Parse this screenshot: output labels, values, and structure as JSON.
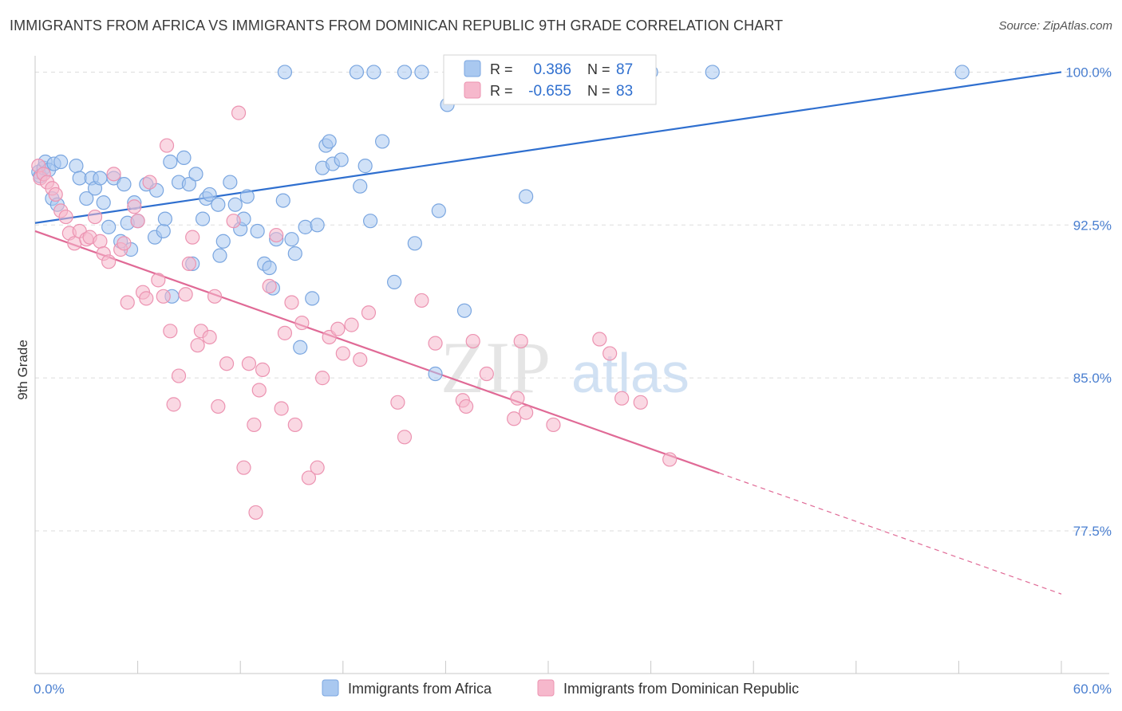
{
  "header": {
    "title": "IMMIGRANTS FROM AFRICA VS IMMIGRANTS FROM DOMINICAN REPUBLIC 9TH GRADE CORRELATION CHART",
    "source": "Source: ZipAtlas.com"
  },
  "watermark": {
    "zip": "ZIP",
    "atlas": "atlas"
  },
  "stats_legend": {
    "africa": {
      "r_label": "R =",
      "r_value": "0.386",
      "n_label": "N =",
      "n_value": "87"
    },
    "dominican": {
      "r_label": "R =",
      "r_value": "-0.655",
      "n_label": "N =",
      "n_value": "83"
    }
  },
  "bottom_legend": {
    "africa_label": "Immigrants from Africa",
    "dominican_label": "Immigrants from Dominican Republic"
  },
  "colors": {
    "africa_fill": "#a9c8f0",
    "africa_stroke": "#7aa6e0",
    "africa_line": "#2f6fcf",
    "dominican_fill": "#f6b8cc",
    "dominican_stroke": "#ec93b1",
    "dominican_line": "#e06a96",
    "axis_text": "#4a7fd0",
    "grid": "#dddddd"
  },
  "chart_data": {
    "type": "scatter",
    "xlabel": "",
    "ylabel": "9th Grade",
    "xlim": [
      0,
      60
    ],
    "ylim": [
      70.5,
      100.8
    ],
    "x_tick_labels": [
      {
        "value": 0,
        "label": "0.0%"
      },
      {
        "value": 60,
        "label": "60.0%"
      }
    ],
    "y_tick_labels": [
      {
        "value": 100,
        "label": "100.0%"
      },
      {
        "value": 92.5,
        "label": "92.5%"
      },
      {
        "value": 85,
        "label": "85.0%"
      },
      {
        "value": 77.5,
        "label": "77.5%"
      }
    ],
    "grid": true,
    "series": [
      {
        "name": "Immigrants from Africa",
        "r": 0.386,
        "n": 87,
        "trend": {
          "x0": 0,
          "y0": 92.6,
          "x1": 60,
          "y1": 100.0,
          "dashed_from": null
        },
        "points": [
          [
            0.2,
            95.1
          ],
          [
            0.3,
            94.9
          ],
          [
            0.5,
            95.3
          ],
          [
            0.6,
            95.6
          ],
          [
            0.8,
            95.2
          ],
          [
            1.0,
            93.8
          ],
          [
            1.1,
            95.5
          ],
          [
            1.3,
            93.5
          ],
          [
            1.5,
            95.6
          ],
          [
            2.4,
            95.4
          ],
          [
            2.6,
            94.8
          ],
          [
            3.0,
            93.8
          ],
          [
            3.3,
            94.8
          ],
          [
            3.5,
            94.3
          ],
          [
            3.8,
            94.8
          ],
          [
            4.0,
            93.6
          ],
          [
            4.3,
            92.4
          ],
          [
            4.6,
            94.8
          ],
          [
            5.0,
            91.7
          ],
          [
            5.2,
            94.5
          ],
          [
            5.4,
            92.6
          ],
          [
            5.6,
            91.3
          ],
          [
            5.8,
            93.6
          ],
          [
            6.0,
            92.7
          ],
          [
            6.5,
            94.5
          ],
          [
            7.0,
            91.9
          ],
          [
            7.1,
            94.2
          ],
          [
            7.5,
            92.2
          ],
          [
            7.6,
            92.8
          ],
          [
            7.9,
            95.6
          ],
          [
            8.0,
            89.0
          ],
          [
            8.4,
            94.6
          ],
          [
            8.7,
            95.8
          ],
          [
            9.0,
            94.5
          ],
          [
            9.2,
            90.6
          ],
          [
            9.4,
            95.0
          ],
          [
            9.8,
            92.8
          ],
          [
            10.0,
            93.8
          ],
          [
            10.2,
            94.0
          ],
          [
            10.7,
            93.5
          ],
          [
            10.8,
            91.0
          ],
          [
            11.0,
            91.7
          ],
          [
            11.4,
            94.6
          ],
          [
            11.7,
            93.5
          ],
          [
            12.0,
            92.3
          ],
          [
            12.2,
            92.8
          ],
          [
            12.4,
            93.9
          ],
          [
            13.0,
            92.2
          ],
          [
            13.4,
            90.6
          ],
          [
            13.7,
            90.4
          ],
          [
            13.9,
            89.4
          ],
          [
            14.1,
            91.8
          ],
          [
            14.5,
            93.7
          ],
          [
            14.6,
            100.0
          ],
          [
            15.0,
            91.8
          ],
          [
            15.2,
            91.1
          ],
          [
            15.5,
            86.5
          ],
          [
            15.8,
            92.4
          ],
          [
            16.2,
            88.9
          ],
          [
            16.5,
            92.5
          ],
          [
            16.8,
            95.3
          ],
          [
            17.0,
            96.4
          ],
          [
            17.2,
            96.6
          ],
          [
            17.4,
            95.5
          ],
          [
            17.9,
            95.7
          ],
          [
            18.8,
            100.0
          ],
          [
            19.0,
            94.4
          ],
          [
            19.3,
            95.4
          ],
          [
            19.6,
            92.7
          ],
          [
            19.8,
            100.0
          ],
          [
            20.3,
            96.6
          ],
          [
            21.0,
            89.7
          ],
          [
            21.6,
            100.0
          ],
          [
            22.2,
            91.6
          ],
          [
            22.6,
            100.0
          ],
          [
            23.4,
            85.2
          ],
          [
            23.6,
            93.2
          ],
          [
            24.1,
            98.4
          ],
          [
            25.1,
            88.3
          ],
          [
            26.4,
            100.0
          ],
          [
            28.7,
            93.9
          ],
          [
            29.5,
            100.0
          ],
          [
            30.1,
            100.0
          ],
          [
            32.0,
            100.0
          ],
          [
            36.0,
            100.0
          ],
          [
            39.6,
            100.0
          ],
          [
            54.2,
            100.0
          ]
        ]
      },
      {
        "name": "Immigrants from Dominican Republic",
        "r": -0.655,
        "n": 83,
        "trend": {
          "x0": 0,
          "y0": 92.2,
          "x1": 60,
          "y1": 74.4,
          "dashed_from": 40
        },
        "points": [
          [
            0.2,
            95.4
          ],
          [
            0.3,
            94.8
          ],
          [
            0.5,
            95.0
          ],
          [
            0.7,
            94.6
          ],
          [
            1.0,
            94.3
          ],
          [
            1.2,
            94.0
          ],
          [
            1.5,
            93.2
          ],
          [
            1.8,
            92.9
          ],
          [
            2.0,
            92.1
          ],
          [
            2.3,
            91.6
          ],
          [
            2.6,
            92.2
          ],
          [
            3.0,
            91.8
          ],
          [
            3.2,
            91.9
          ],
          [
            3.5,
            92.9
          ],
          [
            3.8,
            91.7
          ],
          [
            4.0,
            91.1
          ],
          [
            4.3,
            90.7
          ],
          [
            4.6,
            95.0
          ],
          [
            5.0,
            91.3
          ],
          [
            5.2,
            91.6
          ],
          [
            5.4,
            88.7
          ],
          [
            5.8,
            93.4
          ],
          [
            6.0,
            92.7
          ],
          [
            6.3,
            89.2
          ],
          [
            6.5,
            88.9
          ],
          [
            6.7,
            94.6
          ],
          [
            7.2,
            89.8
          ],
          [
            7.5,
            89.0
          ],
          [
            7.7,
            96.4
          ],
          [
            7.9,
            87.3
          ],
          [
            8.1,
            83.7
          ],
          [
            8.4,
            85.1
          ],
          [
            8.8,
            89.1
          ],
          [
            9.0,
            90.6
          ],
          [
            9.2,
            91.9
          ],
          [
            9.5,
            86.6
          ],
          [
            9.7,
            87.3
          ],
          [
            10.2,
            87.0
          ],
          [
            10.5,
            89.0
          ],
          [
            10.7,
            83.6
          ],
          [
            11.2,
            85.7
          ],
          [
            11.6,
            92.7
          ],
          [
            11.9,
            98.0
          ],
          [
            12.2,
            80.6
          ],
          [
            12.5,
            85.7
          ],
          [
            12.8,
            82.7
          ],
          [
            12.9,
            78.4
          ],
          [
            13.1,
            84.4
          ],
          [
            13.3,
            85.4
          ],
          [
            13.7,
            89.5
          ],
          [
            14.1,
            92.0
          ],
          [
            14.4,
            83.5
          ],
          [
            14.6,
            87.2
          ],
          [
            15.0,
            88.7
          ],
          [
            15.2,
            82.7
          ],
          [
            15.6,
            87.7
          ],
          [
            16.0,
            80.1
          ],
          [
            16.5,
            80.6
          ],
          [
            16.8,
            85.0
          ],
          [
            17.2,
            87.0
          ],
          [
            17.7,
            87.4
          ],
          [
            18.0,
            86.2
          ],
          [
            18.5,
            87.6
          ],
          [
            19.0,
            85.9
          ],
          [
            19.5,
            88.2
          ],
          [
            21.2,
            83.8
          ],
          [
            21.6,
            82.1
          ],
          [
            22.6,
            88.8
          ],
          [
            23.4,
            86.7
          ],
          [
            25.0,
            83.9
          ],
          [
            25.2,
            83.6
          ],
          [
            25.6,
            86.8
          ],
          [
            26.4,
            85.2
          ],
          [
            28.0,
            83.0
          ],
          [
            28.2,
            84.0
          ],
          [
            28.4,
            86.8
          ],
          [
            28.7,
            83.3
          ],
          [
            30.3,
            82.7
          ],
          [
            33.0,
            86.9
          ],
          [
            33.6,
            86.2
          ],
          [
            34.3,
            84.0
          ],
          [
            35.4,
            83.8
          ],
          [
            37.1,
            81.0
          ]
        ]
      }
    ]
  }
}
